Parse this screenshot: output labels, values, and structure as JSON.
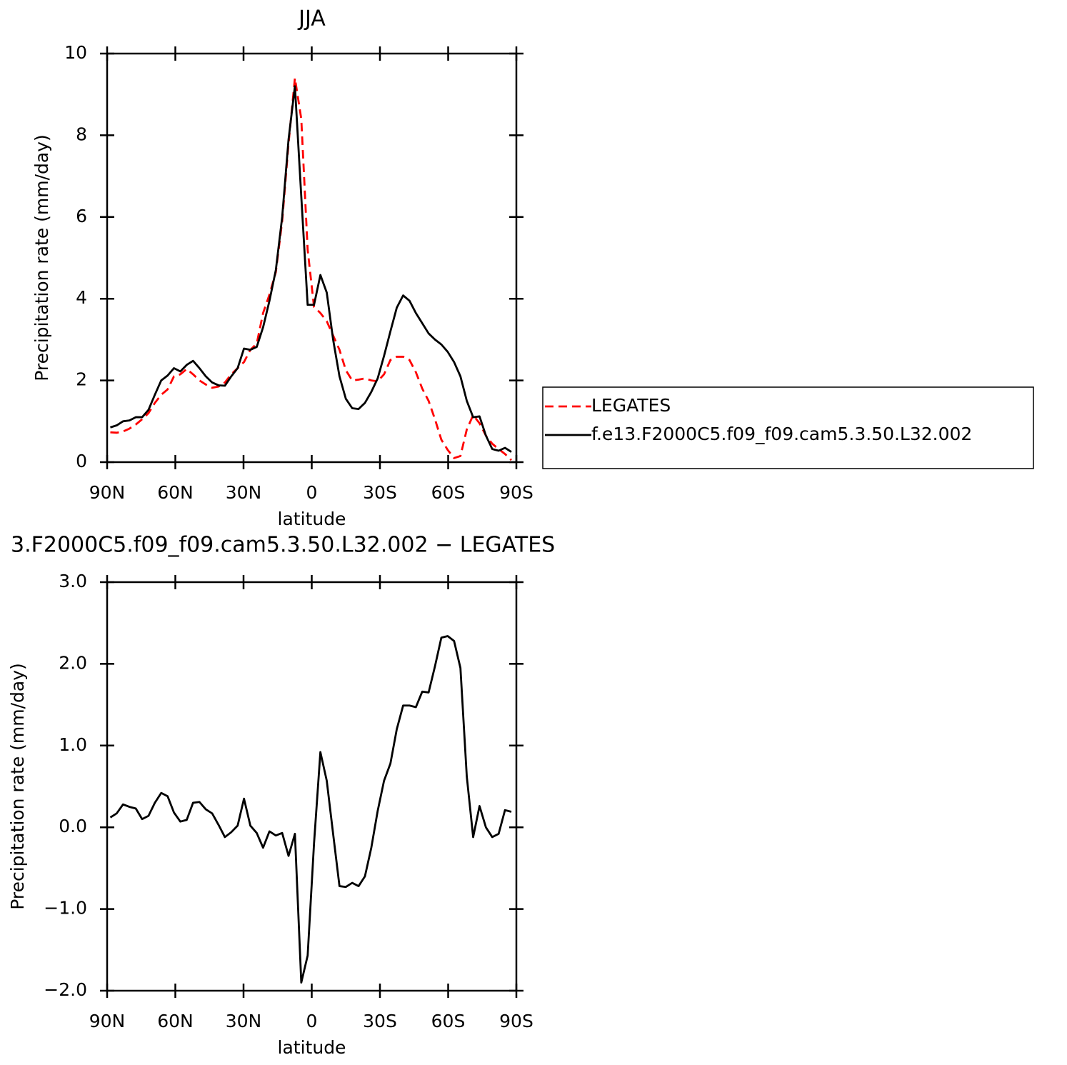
{
  "chart_data": [
    {
      "type": "line",
      "title": "JJA",
      "x_label": "latitude",
      "y_label": "Precipitation rate (mm/day)",
      "x": [
        88.6,
        85.8,
        83,
        80.2,
        77.4,
        74.6,
        71.8,
        69,
        66.2,
        63.4,
        60.6,
        57.8,
        55,
        52.2,
        49.4,
        46.6,
        43.8,
        41,
        38.2,
        35.4,
        32.6,
        29.8,
        27,
        24.2,
        21.4,
        18.6,
        15.8,
        13,
        10.2,
        7.4,
        4.6,
        1.8,
        -1,
        -3.8,
        -6.6,
        -9.4,
        -12.2,
        -15,
        -17.8,
        -20.6,
        -23.4,
        -26.2,
        -29,
        -31.8,
        -34.6,
        -37.4,
        -40.2,
        -43,
        -45.8,
        -48.6,
        -51.4,
        -54.2,
        -57,
        -59.8,
        -62.6,
        -65.4,
        -68.2,
        -71,
        -73.8,
        -76.6,
        -79.4,
        -82.2,
        -85,
        -87.8
      ],
      "xlim": [
        90,
        -90
      ],
      "xticks": [
        {
          "value": 90,
          "label": "90N"
        },
        {
          "value": 60,
          "label": "60N"
        },
        {
          "value": 30,
          "label": "30N"
        },
        0,
        {
          "value": -30,
          "label": "30S"
        },
        {
          "value": -60,
          "label": "60S"
        },
        {
          "value": -90,
          "label": "90S"
        }
      ],
      "ylim": [
        0,
        10
      ],
      "yticks": [
        0,
        2,
        4,
        6,
        8,
        10
      ],
      "legend": "right",
      "series": [
        {
          "name": "LEGATES",
          "color": "#ff0000",
          "dashed": true,
          "values": [
            0.73,
            0.72,
            0.75,
            0.82,
            0.92,
            1.05,
            1.2,
            1.45,
            1.65,
            1.78,
            2.1,
            2.15,
            2.28,
            2.15,
            2.0,
            1.9,
            1.82,
            1.85,
            1.95,
            2.15,
            2.3,
            2.45,
            2.75,
            2.9,
            3.65,
            4.1,
            4.65,
            5.9,
            7.8,
            9.4,
            8.4,
            5.2,
            3.8,
            3.65,
            3.45,
            3.1,
            2.75,
            2.25,
            2.0,
            2.02,
            2.05,
            2.0,
            1.98,
            2.15,
            2.5,
            2.58,
            2.58,
            2.5,
            2.2,
            1.8,
            1.5,
            1.05,
            0.55,
            0.3,
            0.1,
            0.15,
            0.8,
            1.15,
            0.95,
            0.65,
            0.45,
            0.32,
            0.2,
            0.05
          ]
        },
        {
          "name": "f.e13.F2000C5.f09_f09.cam5.3.50.L32.002",
          "color": "#000000",
          "dashed": false,
          "values": [
            0.85,
            0.9,
            1.0,
            1.02,
            1.1,
            1.1,
            1.28,
            1.65,
            2.0,
            2.12,
            2.3,
            2.22,
            2.38,
            2.48,
            2.3,
            2.1,
            1.95,
            1.88,
            1.87,
            2.1,
            2.3,
            2.78,
            2.75,
            2.82,
            3.3,
            3.95,
            4.7,
            6.0,
            7.9,
            9.2,
            6.5,
            3.85,
            3.85,
            4.58,
            4.15,
            3.0,
            2.1,
            1.55,
            1.32,
            1.3,
            1.45,
            1.72,
            2.05,
            2.6,
            3.2,
            3.78,
            4.08,
            3.95,
            3.65,
            3.4,
            3.15,
            3.0,
            2.88,
            2.7,
            2.45,
            2.1,
            1.5,
            1.1,
            1.12,
            0.65,
            0.32,
            0.28,
            0.35,
            0.25
          ]
        }
      ]
    },
    {
      "type": "line",
      "title": "3.F2000C5.f09_f09.cam5.3.50.L32.002 − LEGATES",
      "x_label": "latitude",
      "y_label": "Precipitation rate (mm/day)",
      "x": [
        88.6,
        85.8,
        83,
        80.2,
        77.4,
        74.6,
        71.8,
        69,
        66.2,
        63.4,
        60.6,
        57.8,
        55,
        52.2,
        49.4,
        46.6,
        43.8,
        41,
        38.2,
        35.4,
        32.6,
        29.8,
        27,
        24.2,
        21.4,
        18.6,
        15.8,
        13,
        10.2,
        7.4,
        4.6,
        1.8,
        -1,
        -3.8,
        -6.6,
        -9.4,
        -12.2,
        -15,
        -17.8,
        -20.6,
        -23.4,
        -26.2,
        -29,
        -31.8,
        -34.6,
        -37.4,
        -40.2,
        -43,
        -45.8,
        -48.6,
        -51.4,
        -54.2,
        -57,
        -59.8,
        -62.6,
        -65.4,
        -68.2,
        -71,
        -73.8,
        -76.6,
        -79.4,
        -82.2,
        -85,
        -87.8
      ],
      "xlim": [
        90,
        -90
      ],
      "xticks": [
        {
          "value": 90,
          "label": "90N"
        },
        {
          "value": 60,
          "label": "60N"
        },
        {
          "value": 30,
          "label": "30N"
        },
        0,
        {
          "value": -30,
          "label": "30S"
        },
        {
          "value": -60,
          "label": "60S"
        },
        {
          "value": -90,
          "label": "90S"
        }
      ],
      "ylim": [
        -2,
        3
      ],
      "yticks": [
        {
          "value": -2,
          "label": "−2.0"
        },
        {
          "value": -1,
          "label": "−1.0"
        },
        {
          "value": 0,
          "label": "0.0"
        },
        {
          "value": 1,
          "label": "1.0"
        },
        {
          "value": 2,
          "label": "2.0"
        },
        {
          "value": 3,
          "label": "3.0"
        }
      ],
      "color": "#000000",
      "values": [
        0.12,
        0.17,
        0.28,
        0.25,
        0.23,
        0.1,
        0.14,
        0.3,
        0.42,
        0.38,
        0.18,
        0.07,
        0.09,
        0.3,
        0.31,
        0.22,
        0.17,
        0.03,
        -0.12,
        -0.06,
        0.02,
        0.35,
        0.02,
        -0.07,
        -0.25,
        -0.05,
        -0.1,
        -0.07,
        -0.35,
        -0.08,
        -1.9,
        -1.57,
        -0.2,
        0.92,
        0.57,
        -0.08,
        -0.72,
        -0.73,
        -0.68,
        -0.72,
        -0.6,
        -0.25,
        0.2,
        0.57,
        0.78,
        1.2,
        1.49,
        1.49,
        1.47,
        1.66,
        1.65,
        1.97,
        2.32,
        2.34,
        2.28,
        1.95,
        0.62,
        -0.12,
        0.26,
        0,
        -0.12,
        -0.08,
        0.21,
        0.19
      ]
    }
  ]
}
